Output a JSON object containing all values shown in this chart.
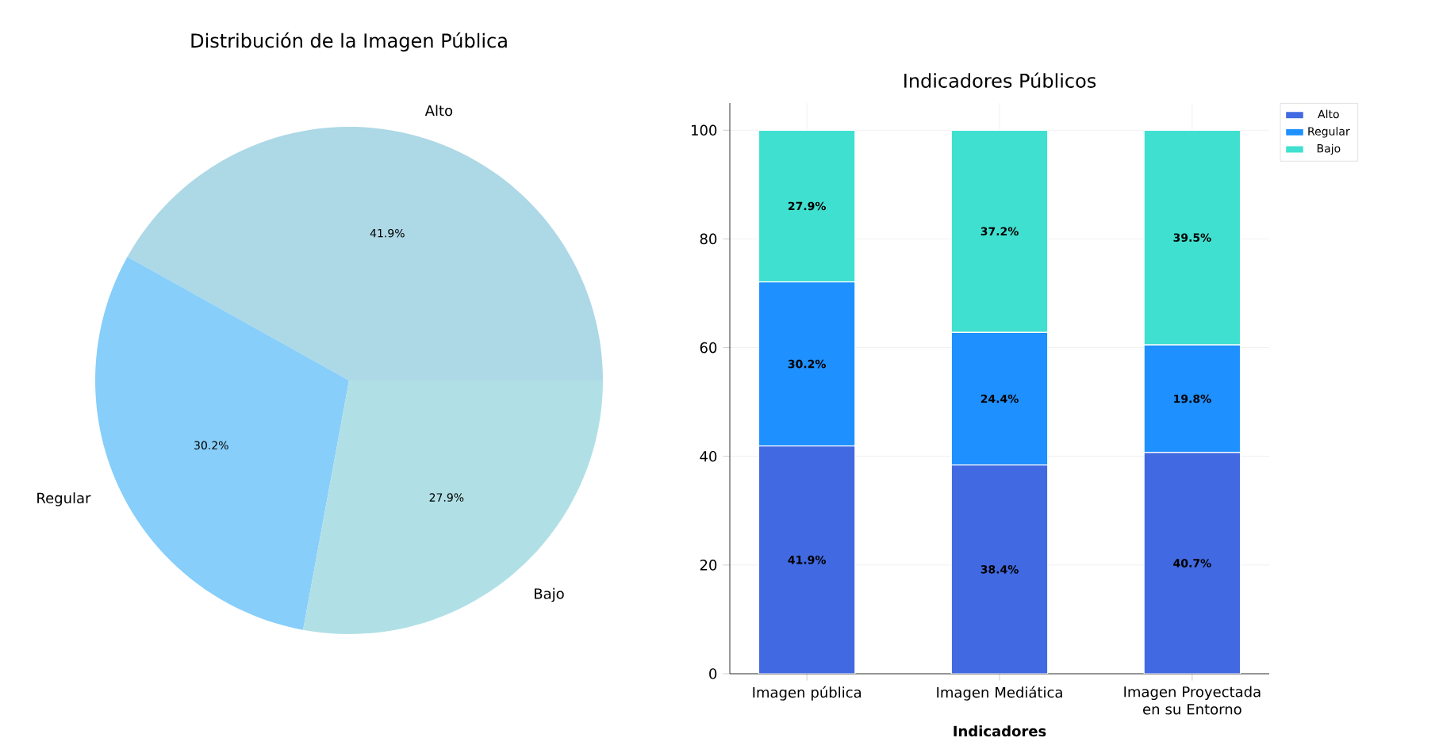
{
  "chart_data": [
    {
      "type": "pie",
      "title": "Distribución de la Imagen Pública",
      "categories": [
        "Alto",
        "Regular",
        "Bajo"
      ],
      "values": [
        41.9,
        30.2,
        27.9
      ],
      "colors": [
        "#add8e6",
        "#87cefa",
        "#b0e0e6"
      ],
      "value_labels": [
        "41.9%",
        "30.2%",
        "27.9%"
      ]
    },
    {
      "type": "bar",
      "title": "Indicadores Públicos",
      "xlabel": "Indicadores",
      "categories": [
        "Imagen pública",
        "Imagen Mediática",
        "Imagen Proyectada en su Entorno"
      ],
      "stacked": true,
      "ylim": [
        0,
        105
      ],
      "yticks": [
        0,
        20,
        40,
        60,
        80,
        100
      ],
      "grid": true,
      "legend": "top right",
      "series": [
        {
          "name": "Alto",
          "color": "#4169e1",
          "values": [
            41.9,
            38.4,
            40.7
          ],
          "value_labels": [
            "41.9%",
            "38.4%",
            "40.7%"
          ]
        },
        {
          "name": "Regular",
          "color": "#1e90ff",
          "values": [
            30.2,
            24.4,
            19.8
          ],
          "value_labels": [
            "30.2%",
            "24.4%",
            "19.8%"
          ]
        },
        {
          "name": "Bajo",
          "color": "#40e0d0",
          "values": [
            27.9,
            37.2,
            39.5
          ],
          "value_labels": [
            "27.9%",
            "37.2%",
            "39.5%"
          ]
        }
      ]
    }
  ]
}
